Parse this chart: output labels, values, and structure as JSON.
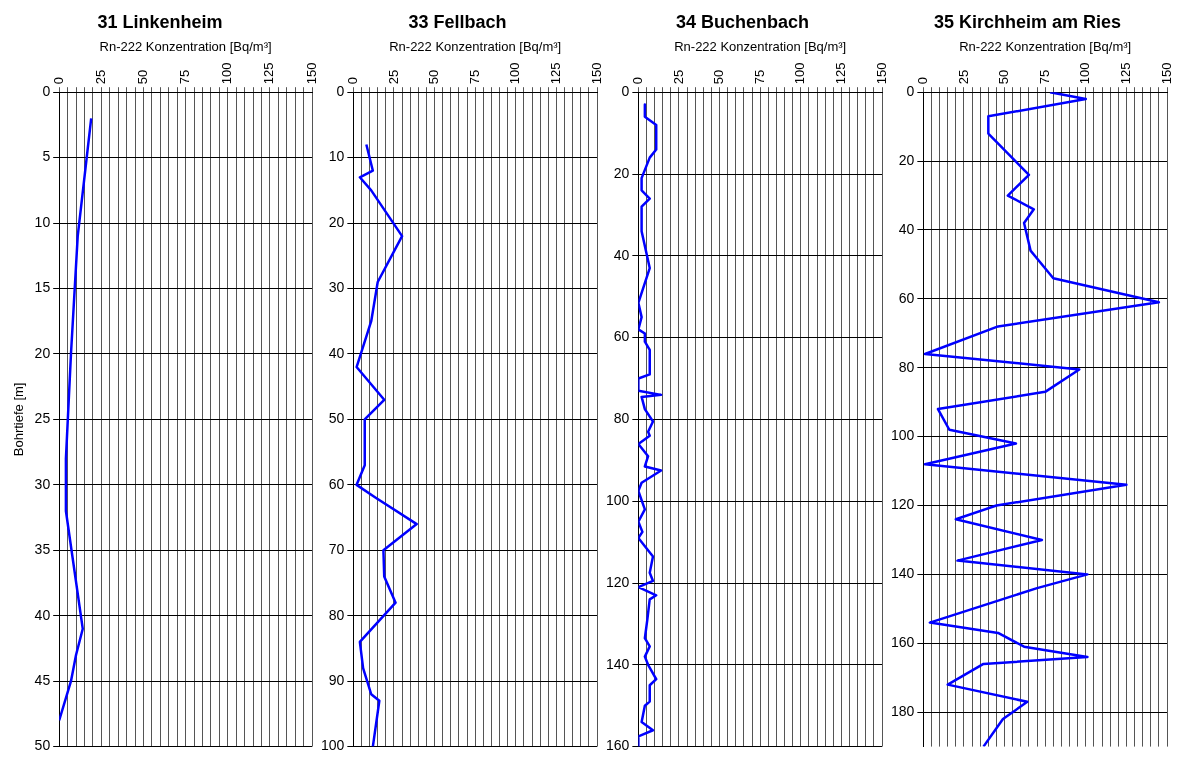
{
  "chart_data": [
    {
      "type": "line",
      "title": "31 Linkenheim",
      "xlabel": "Rn-222 Konzentration [Bq/m³]",
      "ylabel": "Bohrtiefe [m]",
      "xlim": [
        0,
        150
      ],
      "xticks": [
        0,
        {
          "value": 5,
          "label": null
        },
        {
          "value": 10,
          "label": null
        },
        {
          "value": 15,
          "label": null
        },
        {
          "value": 20,
          "label": null
        },
        25,
        {
          "value": 30,
          "label": null
        },
        {
          "value": 35,
          "label": null
        },
        {
          "value": 40,
          "label": null
        },
        {
          "value": 45,
          "label": null
        },
        50,
        {
          "value": 55,
          "label": null
        },
        {
          "value": 60,
          "label": null
        },
        {
          "value": 65,
          "label": null
        },
        {
          "value": 70,
          "label": null
        },
        75,
        {
          "value": 80,
          "label": null
        },
        {
          "value": 85,
          "label": null
        },
        {
          "value": 90,
          "label": null
        },
        {
          "value": 95,
          "label": null
        },
        100,
        {
          "value": 105,
          "label": null
        },
        {
          "value": 110,
          "label": null
        },
        {
          "value": 115,
          "label": null
        },
        {
          "value": 120,
          "label": null
        },
        125,
        {
          "value": 130,
          "label": null
        },
        {
          "value": 135,
          "label": null
        },
        {
          "value": 140,
          "label": null
        },
        {
          "value": 145,
          "label": null
        },
        150
      ],
      "ylim": [
        50,
        0
      ],
      "yticks": [
        0,
        5,
        10,
        15,
        20,
        25,
        30,
        35,
        40,
        45,
        50
      ],
      "grid": true,
      "series": [
        {
          "color": "#0000ff",
          "x": [
            19,
            11,
            7,
            4,
            4,
            14,
            10,
            7,
            0
          ],
          "values": [
            2,
            11,
            20,
            28,
            32,
            41,
            43,
            45,
            48
          ]
        }
      ]
    },
    {
      "type": "line",
      "title": "33 Fellbach",
      "xlabel": "Rn-222 Konzentration [Bq/m³]",
      "xlim": [
        0,
        150
      ],
      "xticks": [
        0,
        {
          "value": 5,
          "label": null
        },
        {
          "value": 10,
          "label": null
        },
        {
          "value": 15,
          "label": null
        },
        {
          "value": 20,
          "label": null
        },
        25,
        {
          "value": 30,
          "label": null
        },
        {
          "value": 35,
          "label": null
        },
        {
          "value": 40,
          "label": null
        },
        {
          "value": 45,
          "label": null
        },
        50,
        {
          "value": 55,
          "label": null
        },
        {
          "value": 60,
          "label": null
        },
        {
          "value": 65,
          "label": null
        },
        {
          "value": 70,
          "label": null
        },
        75,
        {
          "value": 80,
          "label": null
        },
        {
          "value": 85,
          "label": null
        },
        {
          "value": 90,
          "label": null
        },
        {
          "value": 95,
          "label": null
        },
        100,
        {
          "value": 105,
          "label": null
        },
        {
          "value": 110,
          "label": null
        },
        {
          "value": 115,
          "label": null
        },
        {
          "value": 120,
          "label": null
        },
        125,
        {
          "value": 130,
          "label": null
        },
        {
          "value": 135,
          "label": null
        },
        {
          "value": 140,
          "label": null
        },
        {
          "value": 145,
          "label": null
        },
        150
      ],
      "ylim": [
        100,
        0
      ],
      "yticks": [
        0,
        10,
        20,
        30,
        40,
        50,
        60,
        70,
        80,
        90,
        100
      ],
      "grid": true,
      "series": [
        {
          "color": "#0000ff",
          "x": [
            8,
            12,
            4,
            11,
            30,
            15,
            11,
            2,
            19,
            7,
            7,
            2,
            14,
            39,
            18.5,
            19,
            26,
            4,
            6,
            11,
            16,
            12
          ],
          "values": [
            8,
            12,
            13,
            15,
            22,
            29,
            35,
            42,
            47,
            50,
            57,
            60,
            62,
            66,
            70,
            74,
            78,
            84,
            88,
            92,
            93,
            100
          ]
        }
      ]
    },
    {
      "type": "line",
      "title": "34 Buchenbach",
      "xlabel": "Rn-222 Konzentration [Bq/m³]",
      "xlim": [
        0,
        150
      ],
      "xticks": [
        0,
        {
          "value": 5,
          "label": null
        },
        {
          "value": 10,
          "label": null
        },
        {
          "value": 15,
          "label": null
        },
        {
          "value": 20,
          "label": null
        },
        25,
        {
          "value": 30,
          "label": null
        },
        {
          "value": 35,
          "label": null
        },
        {
          "value": 40,
          "label": null
        },
        {
          "value": 45,
          "label": null
        },
        50,
        {
          "value": 55,
          "label": null
        },
        {
          "value": 60,
          "label": null
        },
        {
          "value": 65,
          "label": null
        },
        {
          "value": 70,
          "label": null
        },
        75,
        {
          "value": 80,
          "label": null
        },
        {
          "value": 85,
          "label": null
        },
        {
          "value": 90,
          "label": null
        },
        {
          "value": 95,
          "label": null
        },
        100,
        {
          "value": 105,
          "label": null
        },
        {
          "value": 110,
          "label": null
        },
        {
          "value": 115,
          "label": null
        },
        {
          "value": 120,
          "label": null
        },
        125,
        {
          "value": 130,
          "label": null
        },
        {
          "value": 135,
          "label": null
        },
        {
          "value": 140,
          "label": null
        },
        {
          "value": 145,
          "label": null
        },
        150
      ],
      "ylim": [
        160,
        0
      ],
      "yticks": [
        0,
        20,
        40,
        60,
        80,
        100,
        120,
        140,
        160
      ],
      "grid": true,
      "series": [
        {
          "color": "#0000ff",
          "x": [
            4,
            4,
            11,
            11,
            7,
            2,
            2,
            7,
            2,
            2,
            7,
            0,
            2,
            0,
            4,
            4,
            7,
            7,
            0,
            0,
            14,
            2,
            4,
            9,
            6,
            7,
            0,
            6,
            4,
            14,
            2,
            0,
            4,
            0,
            2.5,
            0,
            9,
            7,
            9,
            0,
            11,
            7,
            5.5,
            4,
            7,
            4,
            6,
            11,
            7,
            7,
            4,
            2,
            9,
            0,
            0
          ],
          "values": [
            3,
            6,
            8,
            14,
            16,
            21,
            24,
            26,
            28,
            34,
            43,
            51.5,
            55,
            58,
            59,
            61,
            63,
            69,
            70,
            73,
            74,
            74.5,
            77.5,
            80.5,
            83,
            84,
            86,
            89,
            91.5,
            92.5,
            95.5,
            97.5,
            102,
            105,
            107.5,
            109,
            113.5,
            117.5,
            119.5,
            121,
            123,
            124,
            129,
            133.5,
            135.5,
            138,
            140,
            143.5,
            145,
            149,
            150,
            154,
            156,
            157.5,
            160
          ]
        }
      ]
    },
    {
      "type": "line",
      "title": "35 Kirchheim am Ries",
      "xlabel": "Rn-222 Konzentration [Bq/m³]",
      "xlim": [
        0,
        150
      ],
      "xticks": [
        0,
        {
          "value": 5,
          "label": null
        },
        {
          "value": 10,
          "label": null
        },
        {
          "value": 15,
          "label": null
        },
        {
          "value": 20,
          "label": null
        },
        25,
        {
          "value": 30,
          "label": null
        },
        {
          "value": 35,
          "label": null
        },
        {
          "value": 40,
          "label": null
        },
        {
          "value": 45,
          "label": null
        },
        50,
        {
          "value": 55,
          "label": null
        },
        {
          "value": 60,
          "label": null
        },
        {
          "value": 65,
          "label": null
        },
        {
          "value": 70,
          "label": null
        },
        75,
        {
          "value": 80,
          "label": null
        },
        {
          "value": 85,
          "label": null
        },
        {
          "value": 90,
          "label": null
        },
        {
          "value": 95,
          "label": null
        },
        100,
        {
          "value": 105,
          "label": null
        },
        {
          "value": 110,
          "label": null
        },
        {
          "value": 115,
          "label": null
        },
        {
          "value": 120,
          "label": null
        },
        125,
        {
          "value": 130,
          "label": null
        },
        {
          "value": 135,
          "label": null
        },
        {
          "value": 140,
          "label": null
        },
        {
          "value": 145,
          "label": null
        },
        150
      ],
      "ylim": [
        190,
        0
      ],
      "yticks": [
        0,
        20,
        40,
        60,
        80,
        100,
        120,
        140,
        160,
        180
      ],
      "grid": true,
      "series": [
        {
          "color": "#0000ff",
          "x": [
            78,
            100,
            40,
            40,
            65,
            52,
            68,
            62,
            66,
            80,
            145,
            46,
            1,
            96,
            75,
            9,
            16,
            57,
            1,
            125,
            45,
            20,
            73,
            21,
            101,
            70,
            4,
            46,
            62,
            101,
            37,
            15,
            64,
            49,
            37
          ],
          "values": [
            0,
            2,
            7,
            12,
            24,
            30,
            34,
            38,
            46,
            54,
            61,
            68,
            76,
            80.5,
            87,
            92,
            98,
            102,
            108,
            114,
            120,
            124,
            130,
            136,
            140,
            144,
            154,
            157,
            161,
            164,
            166,
            172,
            177,
            182,
            190
          ]
        }
      ]
    }
  ]
}
